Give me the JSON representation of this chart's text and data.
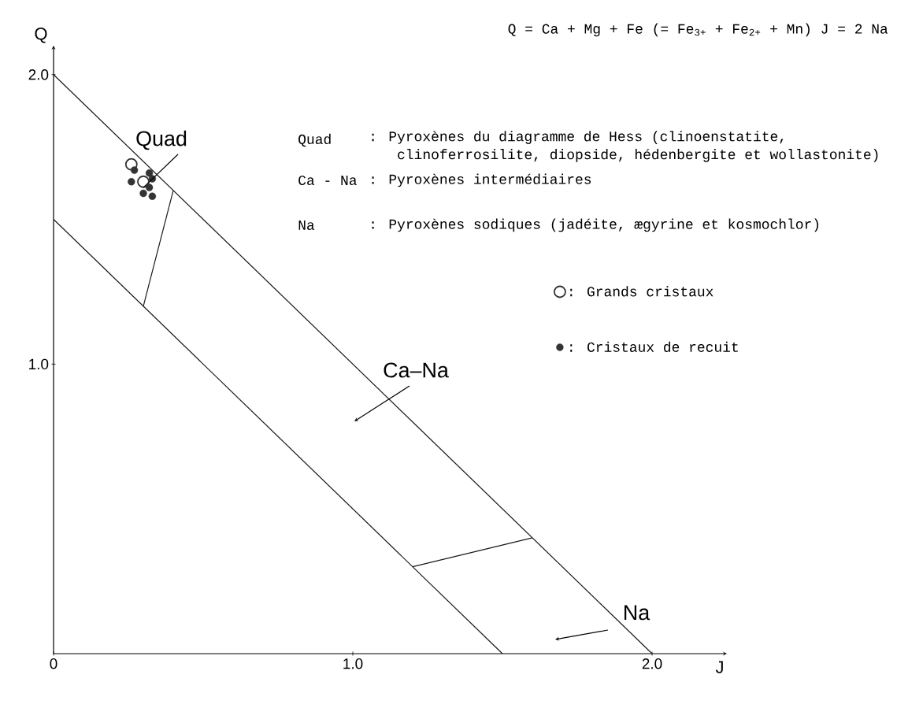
{
  "chart_data": {
    "type": "scatter",
    "xlabel": "J",
    "ylabel": "Q",
    "xlim": [
      0,
      2.25
    ],
    "ylim": [
      0,
      2.1
    ],
    "xticks": [
      0,
      {
        "value": 1,
        "label": "1.0"
      },
      {
        "value": 2,
        "label": "2.0"
      }
    ],
    "yticks": [
      {
        "value": 1,
        "label": "1.0"
      },
      {
        "value": 2,
        "label": "2.0"
      }
    ],
    "legend": "right",
    "grid": false,
    "annotations": [
      "Q = Ca + Mg + Fe (= Fe$_{3+}$ + Fe$_{2+}$ + Mn)  J = 2 Na",
      "Quad",
      ": Pyroxènes du diagramme de Hess (clinoenstatite, clinoferrosilite, diopside, hédenbergite et wollastonite)",
      "Ca - Na",
      ": Pyroxènes intermédiaires",
      "Na",
      ": Pyroxènes sodiques (jadéite, ægyrine et kosmochlor)",
      {
        "text": "Quad",
        "x": 0.3,
        "y": 1.61
      },
      "Ca–Na",
      "Na"
    ],
    "series": [
      {
        "type": "line",
        "color": "#1a1a1a",
        "marker": "none",
        "line_style": "solid",
        "x": [
          0,
          2
        ],
        "values": [
          2,
          0
        ]
      },
      {
        "type": "line",
        "color": "#1a1a1a",
        "marker": "none",
        "line_style": "solid",
        "x": [
          0,
          1.5
        ],
        "values": [
          1.5,
          0
        ]
      },
      {
        "type": "line",
        "color": "#1a1a1a",
        "marker": "none",
        "line_style": "solid",
        "x": [
          0.3,
          0.4
        ],
        "values": [
          1.2,
          1.6
        ]
      },
      {
        "type": "line",
        "color": "#1a1a1a",
        "marker": "none",
        "line_style": "solid",
        "x": [
          1.2,
          1.6
        ],
        "values": [
          0.3,
          0.4
        ]
      },
      {
        "name": ": Grands cristaux",
        "color": "#ffffff",
        "marker": "circle",
        "x": [
          0.26,
          0.3
        ],
        "values": [
          1.69,
          1.63
        ]
      },
      {
        "name": ": Cristaux de recuit",
        "color": "#333333",
        "marker": "circle",
        "x": [
          0.27,
          0.32,
          0.26,
          0.33,
          0.32,
          0.3,
          0.33
        ],
        "values": [
          1.67,
          1.66,
          1.63,
          1.64,
          1.61,
          1.59,
          1.58
        ]
      }
    ]
  }
}
